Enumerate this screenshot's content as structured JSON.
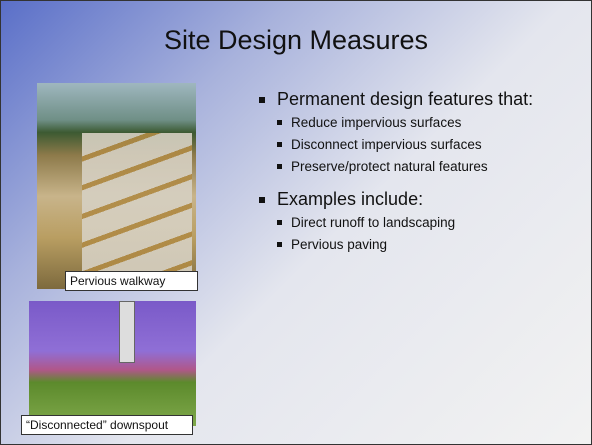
{
  "title": "Site Design Measures",
  "images": [
    {
      "caption": "Pervious walkway"
    },
    {
      "caption": "“Disconnected” downspout"
    }
  ],
  "bullets": [
    {
      "text": "Permanent design features that:",
      "sub": [
        "Reduce impervious surfaces",
        "Disconnect impervious surfaces",
        "Preserve/protect natural features"
      ]
    },
    {
      "text": "Examples include:",
      "sub": [
        "Direct runoff to landscaping",
        "Pervious paving"
      ]
    }
  ]
}
